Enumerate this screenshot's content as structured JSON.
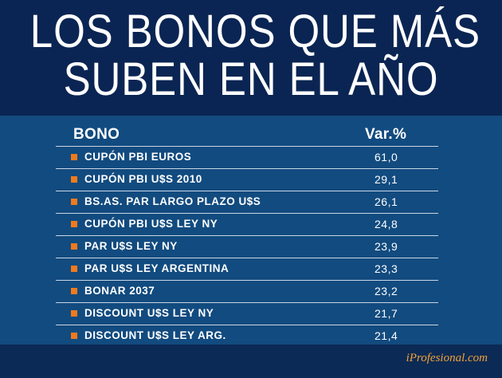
{
  "title_lines": [
    "LOS BONOS QUE MÁS",
    "SUBEN EN EL AÑO"
  ],
  "brand": "iProfesional.com",
  "colors": {
    "header_bg": "#0a2553",
    "panel_bg": "#124b7f",
    "bullet": "#f07a1e",
    "brand": "#f2a23a"
  },
  "chart_data": {
    "type": "table",
    "title": "LOS BONOS QUE MÁS SUBEN EN EL AÑO",
    "columns": [
      "BONO",
      "Var.%"
    ],
    "rows": [
      {
        "name": "CUPÓN PBI EUROS",
        "value": "61,0"
      },
      {
        "name": "CUPÓN PBI U$S 2010",
        "value": "29,1"
      },
      {
        "name": "BS.AS. PAR LARGO PLAZO U$S",
        "value": "26,1"
      },
      {
        "name": "CUPÓN PBI U$S LEY NY",
        "value": "24,8"
      },
      {
        "name": "PAR U$S LEY NY",
        "value": "23,9"
      },
      {
        "name": "PAR U$S LEY ARGENTINA",
        "value": "23,3"
      },
      {
        "name": "BONAR 2037",
        "value": "23,2"
      },
      {
        "name": "DISCOUNT U$S LEY NY",
        "value": "21,7"
      },
      {
        "name": "DISCOUNT U$S LEY ARG.",
        "value": "21,4"
      }
    ]
  }
}
